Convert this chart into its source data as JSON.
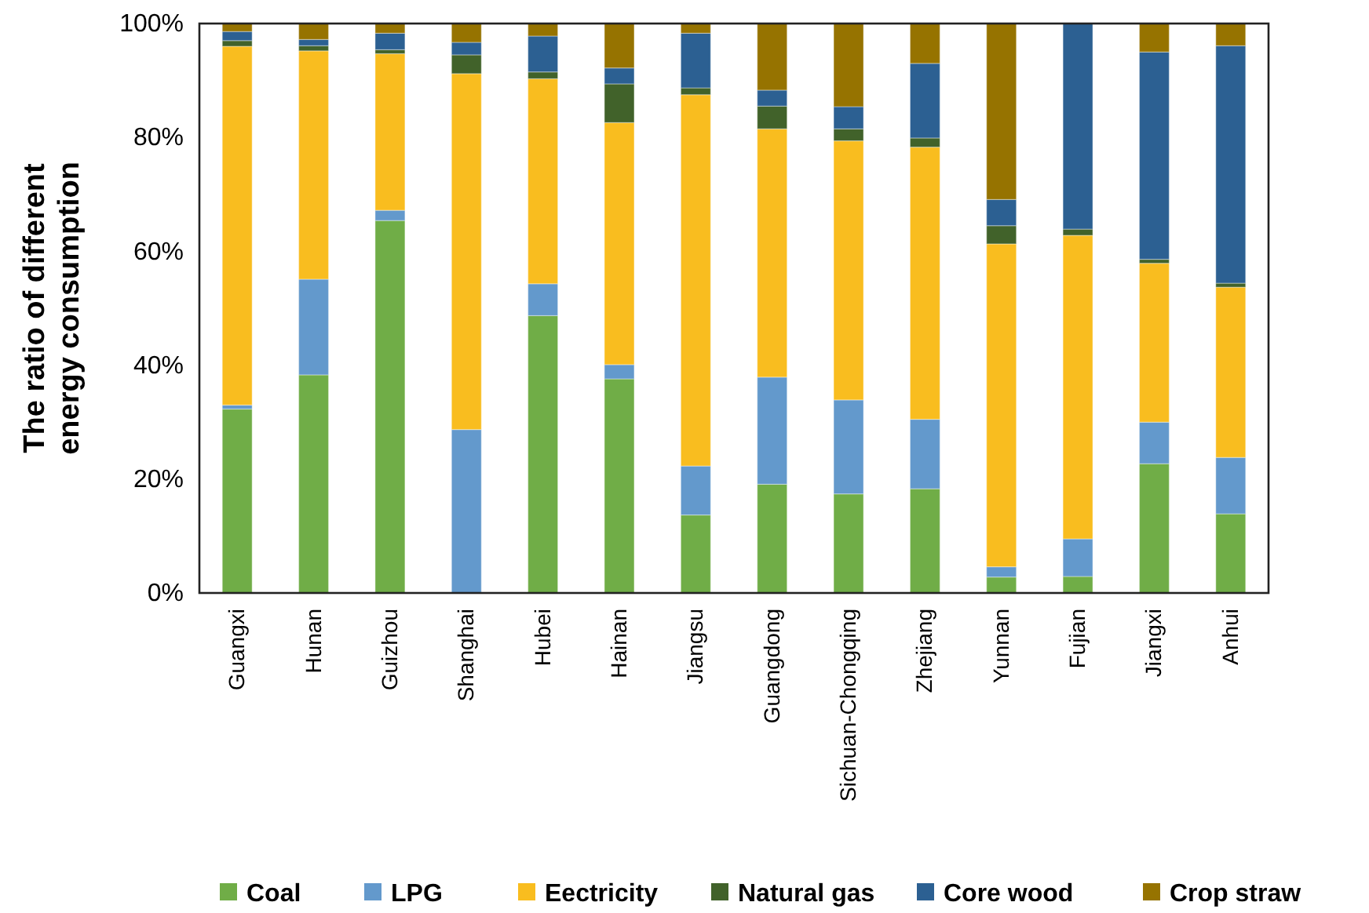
{
  "chart_data": {
    "type": "bar",
    "stacked": true,
    "ylabel": "The ratio of different energy consumption",
    "categories": [
      "Guangxi",
      "Hunan",
      "Guizhou",
      "Shanghai",
      "Hubei",
      "Hainan",
      "Jiangsu",
      "Guangdong",
      "Sichuan-Chongqing",
      "Zhejiang",
      "Yunnan",
      "Fujian",
      "Jiangxi",
      "Anhui"
    ],
    "series": [
      {
        "name": "Coal",
        "color": "#70ad47",
        "values": [
          32.3,
          38.3,
          65.4,
          0,
          48.7,
          37.6,
          13.7,
          19.1,
          17.4,
          18.3,
          2.8,
          2.9,
          22.7,
          13.9
        ]
      },
      {
        "name": "LPG",
        "color": "#6399cc",
        "values": [
          0.7,
          16.8,
          1.8,
          28.7,
          5.6,
          2.5,
          8.6,
          18.8,
          16.5,
          12.2,
          1.8,
          6.6,
          7.3,
          9.9
        ]
      },
      {
        "name": "Eectricity",
        "color": "#f9bd1f",
        "values": [
          63.0,
          40.1,
          27.5,
          62.5,
          36.0,
          42.5,
          65.2,
          43.6,
          45.5,
          47.8,
          56.7,
          53.3,
          27.9,
          29.9
        ]
      },
      {
        "name": "Natural gas",
        "color": "#41622a",
        "values": [
          1.0,
          0.9,
          0.7,
          3.3,
          1.2,
          6.8,
          1.2,
          4.0,
          2.1,
          1.6,
          3.2,
          1.1,
          0.7,
          0.7
        ]
      },
      {
        "name": "Core wood",
        "color": "#2c6092",
        "values": [
          1.6,
          1.1,
          2.9,
          2.2,
          6.3,
          2.8,
          9.6,
          2.8,
          3.9,
          13.1,
          4.6,
          36.1,
          36.4,
          41.7
        ]
      },
      {
        "name": "Crop straw",
        "color": "#967300",
        "values": [
          1.4,
          2.8,
          1.7,
          3.3,
          2.2,
          7.8,
          1.7,
          11.7,
          14.6,
          7.0,
          30.9,
          0,
          5.0,
          3.9
        ]
      }
    ],
    "ylim": [
      0,
      100
    ],
    "yticks": [
      {
        "value": 0,
        "label": "0%"
      },
      {
        "value": 20,
        "label": "20%"
      },
      {
        "value": 40,
        "label": "40%"
      },
      {
        "value": 60,
        "label": "60%"
      },
      {
        "value": 80,
        "label": "80%"
      },
      {
        "value": 100,
        "label": "100%"
      }
    ],
    "grid": false,
    "legend": "bottom"
  }
}
